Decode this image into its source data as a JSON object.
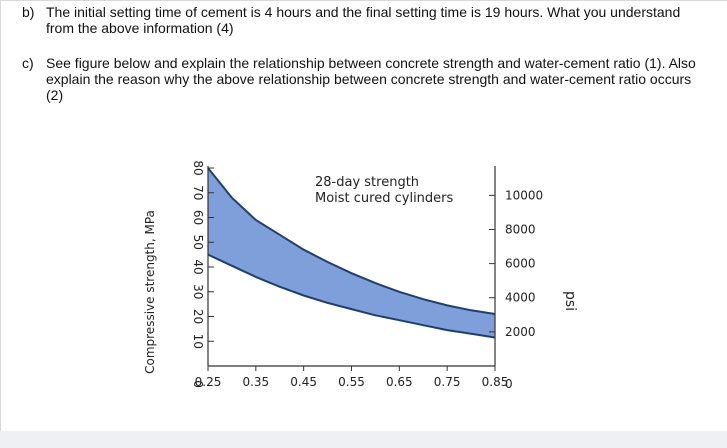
{
  "question_b": {
    "label": "b)",
    "text": "The initial setting time of cement is 4 hours and the final setting time is 19 hours. What you understand from the above information (4)"
  },
  "question_c": {
    "label": "c)",
    "text": "See figure below and explain the relationship between concrete strength and water-cement ratio (1). Also explain the reason why the above relationship between concrete strength and water-cement ratio occurs (2)"
  },
  "chart_data": {
    "type": "area",
    "title": "",
    "annotation_line1": "28-day strength",
    "annotation_line2": "Moist cured cylinders",
    "ylabel": "Compressive strength, MPa",
    "y2label": "psi",
    "xlabel": "",
    "x_ticks": [
      "0.25",
      "0.35",
      "0.45",
      "0.55",
      "0.65",
      "0.75",
      "0.85"
    ],
    "y_ticks": [
      "0",
      "10",
      "20",
      "30",
      "40",
      "50",
      "60",
      "70",
      "80"
    ],
    "y2_ticks": [
      "0",
      "2000",
      "4000",
      "6000",
      "8000",
      "10000"
    ],
    "xlim": [
      0.25,
      0.85
    ],
    "ylim": [
      0,
      80
    ],
    "fill_color": "#7f9fdb",
    "line_color": "#1f3f6f",
    "series": [
      {
        "name": "",
        "x": [
          0.25,
          0.3,
          0.35,
          0.4,
          0.45,
          0.5,
          0.55,
          0.6,
          0.65,
          0.7,
          0.75,
          0.8,
          0.85
        ],
        "values": [
          80,
          68,
          59,
          53,
          47,
          42,
          37.5,
          33.5,
          30,
          27,
          24.5,
          22.5,
          21
        ]
      },
      {
        "name": "",
        "x": [
          0.25,
          0.3,
          0.35,
          0.4,
          0.45,
          0.5,
          0.55,
          0.6,
          0.65,
          0.7,
          0.75,
          0.8,
          0.85
        ],
        "values": [
          45,
          40.5,
          36,
          32,
          28.5,
          25.5,
          23,
          20.5,
          18.5,
          16.5,
          14.5,
          13,
          11.5
        ]
      }
    ]
  }
}
